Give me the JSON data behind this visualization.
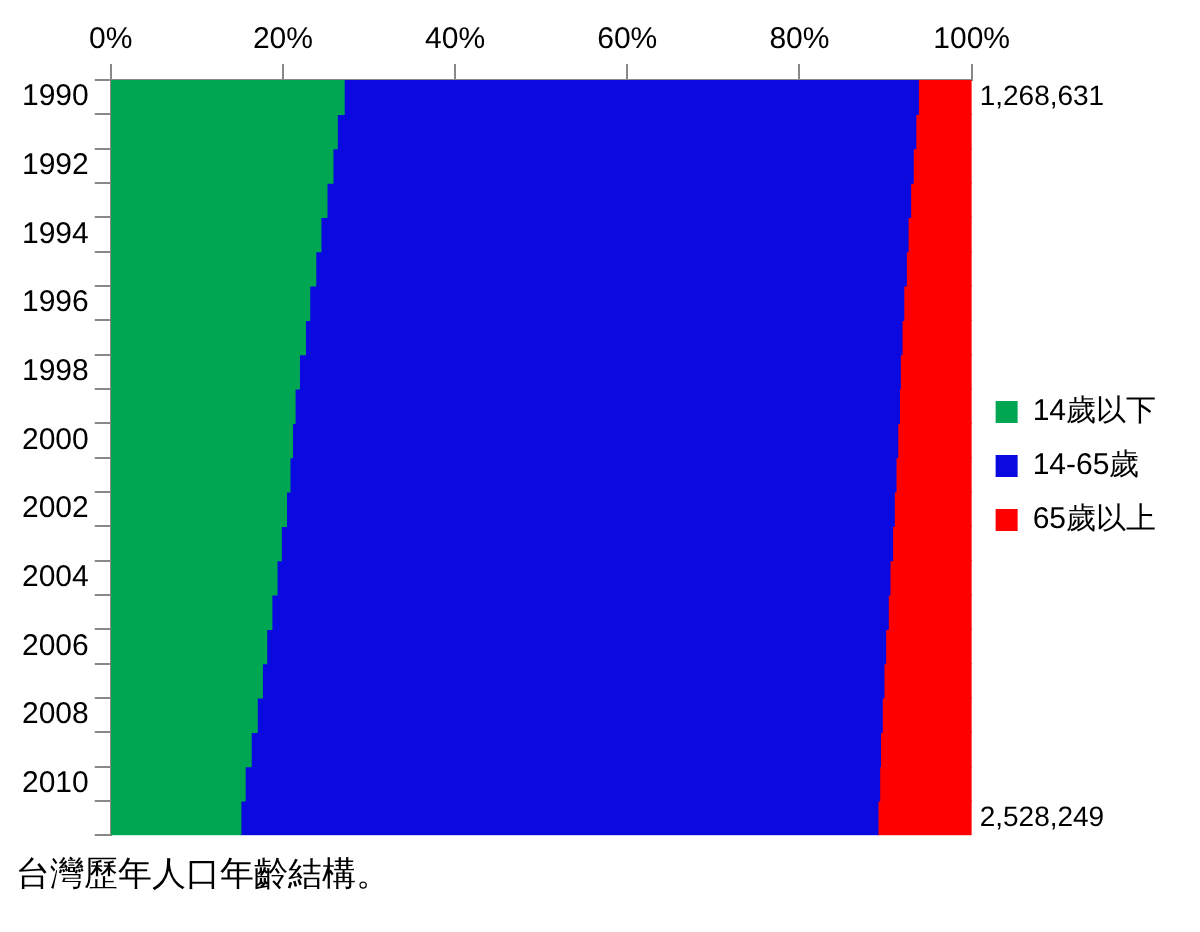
{
  "chart_data": {
    "type": "bar",
    "orientation": "horizontal",
    "stacked": true,
    "title": "台灣歷年人口年齡結構。",
    "categories": [
      "1990",
      null,
      "1992",
      null,
      "1994",
      null,
      "1996",
      null,
      "1998",
      null,
      "2000",
      null,
      "2002",
      null,
      "2004",
      null,
      "2006",
      null,
      "2008",
      null,
      "2010",
      null
    ],
    "series": [
      {
        "name": "14歲以下",
        "color": "#00a651",
        "values": [
          27.1,
          26.3,
          25.8,
          25.1,
          24.4,
          23.8,
          23.1,
          22.6,
          21.9,
          21.4,
          21.1,
          20.8,
          20.4,
          19.8,
          19.3,
          18.7,
          18.1,
          17.6,
          17.0,
          16.3,
          15.6,
          15.1
        ]
      },
      {
        "name": "14-65歲",
        "color": "#0a0ae0",
        "values": [
          66.7,
          67.2,
          67.4,
          67.8,
          68.2,
          68.6,
          69.0,
          69.3,
          69.8,
          70.2,
          70.3,
          70.4,
          70.6,
          71.0,
          71.2,
          71.6,
          71.9,
          72.2,
          72.6,
          73.1,
          73.7,
          74.0
        ]
      },
      {
        "name": "65歲以上",
        "color": "#ff0000",
        "values": [
          6.2,
          6.5,
          6.8,
          7.1,
          7.4,
          7.6,
          7.9,
          8.1,
          8.3,
          8.4,
          8.6,
          8.8,
          9.0,
          9.2,
          9.5,
          9.7,
          10.0,
          10.2,
          10.4,
          10.6,
          10.7,
          10.9
        ]
      }
    ],
    "xlim": [
      0,
      100
    ],
    "xticks": [
      {
        "value": 0,
        "label": "0%"
      },
      {
        "value": 20,
        "label": "20%"
      },
      {
        "value": 40,
        "label": "40%"
      },
      {
        "value": 60,
        "label": "60%"
      },
      {
        "value": 80,
        "label": "80%"
      },
      {
        "value": 100,
        "label": "100%"
      }
    ],
    "annotations": [
      {
        "text": "1,268,631",
        "x": 100,
        "y": "1990"
      },
      {
        "text": "2,528,249",
        "x": 100
      }
    ],
    "legend": "right",
    "grid": false
  }
}
